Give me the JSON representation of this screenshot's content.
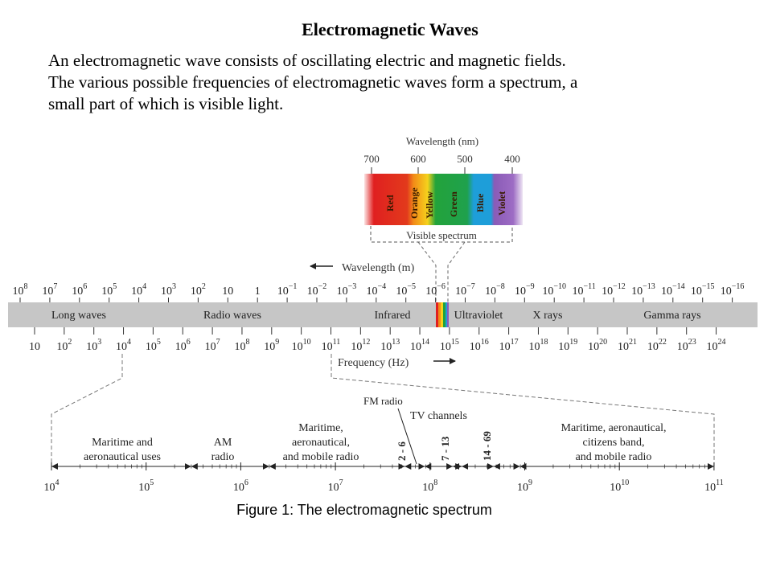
{
  "title": "Electromagnetic Waves",
  "intro": [
    "An electromagnetic wave consists of oscillating electric and magnetic fields.",
    "The various possible frequencies of electromagnetic waves form a spectrum, a",
    "small part of which is visible light."
  ],
  "caption": "Figure 1: The electromagnetic spectrum",
  "visible": {
    "axis_title": "Wavelength (nm)",
    "ticks": [
      "700",
      "600",
      "500",
      "400"
    ],
    "colors": [
      "Red",
      "Orange",
      "Yellow",
      "Green",
      "Blue",
      "Violet"
    ],
    "label": "Visible spectrum"
  },
  "main": {
    "wavelength_label": "Wavelength (m)",
    "frequency_label": "Frequency (Hz)",
    "wavelength_exponents": [
      "8",
      "7",
      "6",
      "5",
      "4",
      "3",
      "2",
      "",
      "",
      "−1",
      "−2",
      "−3",
      "−4",
      "−5",
      "−6",
      "−7",
      "−8",
      "−9",
      "−10",
      "−11",
      "−12",
      "−13",
      "−14",
      "−15",
      "−16"
    ],
    "frequency_exponents": [
      "",
      "2",
      "3",
      "4",
      "5",
      "6",
      "7",
      "8",
      "9",
      "10",
      "11",
      "12",
      "13",
      "14",
      "15",
      "16",
      "17",
      "18",
      "19",
      "20",
      "21",
      "22",
      "23",
      "24"
    ],
    "bands": [
      "Long waves",
      "Radio waves",
      "Infrared",
      "Ultraviolet",
      "X rays",
      "Gamma rays"
    ]
  },
  "detail": {
    "axis_exponents": [
      "4",
      "5",
      "6",
      "7",
      "8",
      "9",
      "10",
      "11"
    ],
    "regions": [
      [
        "Maritime and",
        "aeronautical uses"
      ],
      [
        "AM",
        "radio"
      ],
      [
        "Maritime,",
        "aeronautical,",
        "and mobile radio"
      ],
      [
        "Maritime, aeronautical,",
        "citizens band,",
        "and mobile radio"
      ]
    ],
    "fm_label": "FM radio",
    "tv_label": "TV channels",
    "channel_bands": [
      "2 - 6",
      "7 - 13",
      "14 - 69"
    ]
  }
}
